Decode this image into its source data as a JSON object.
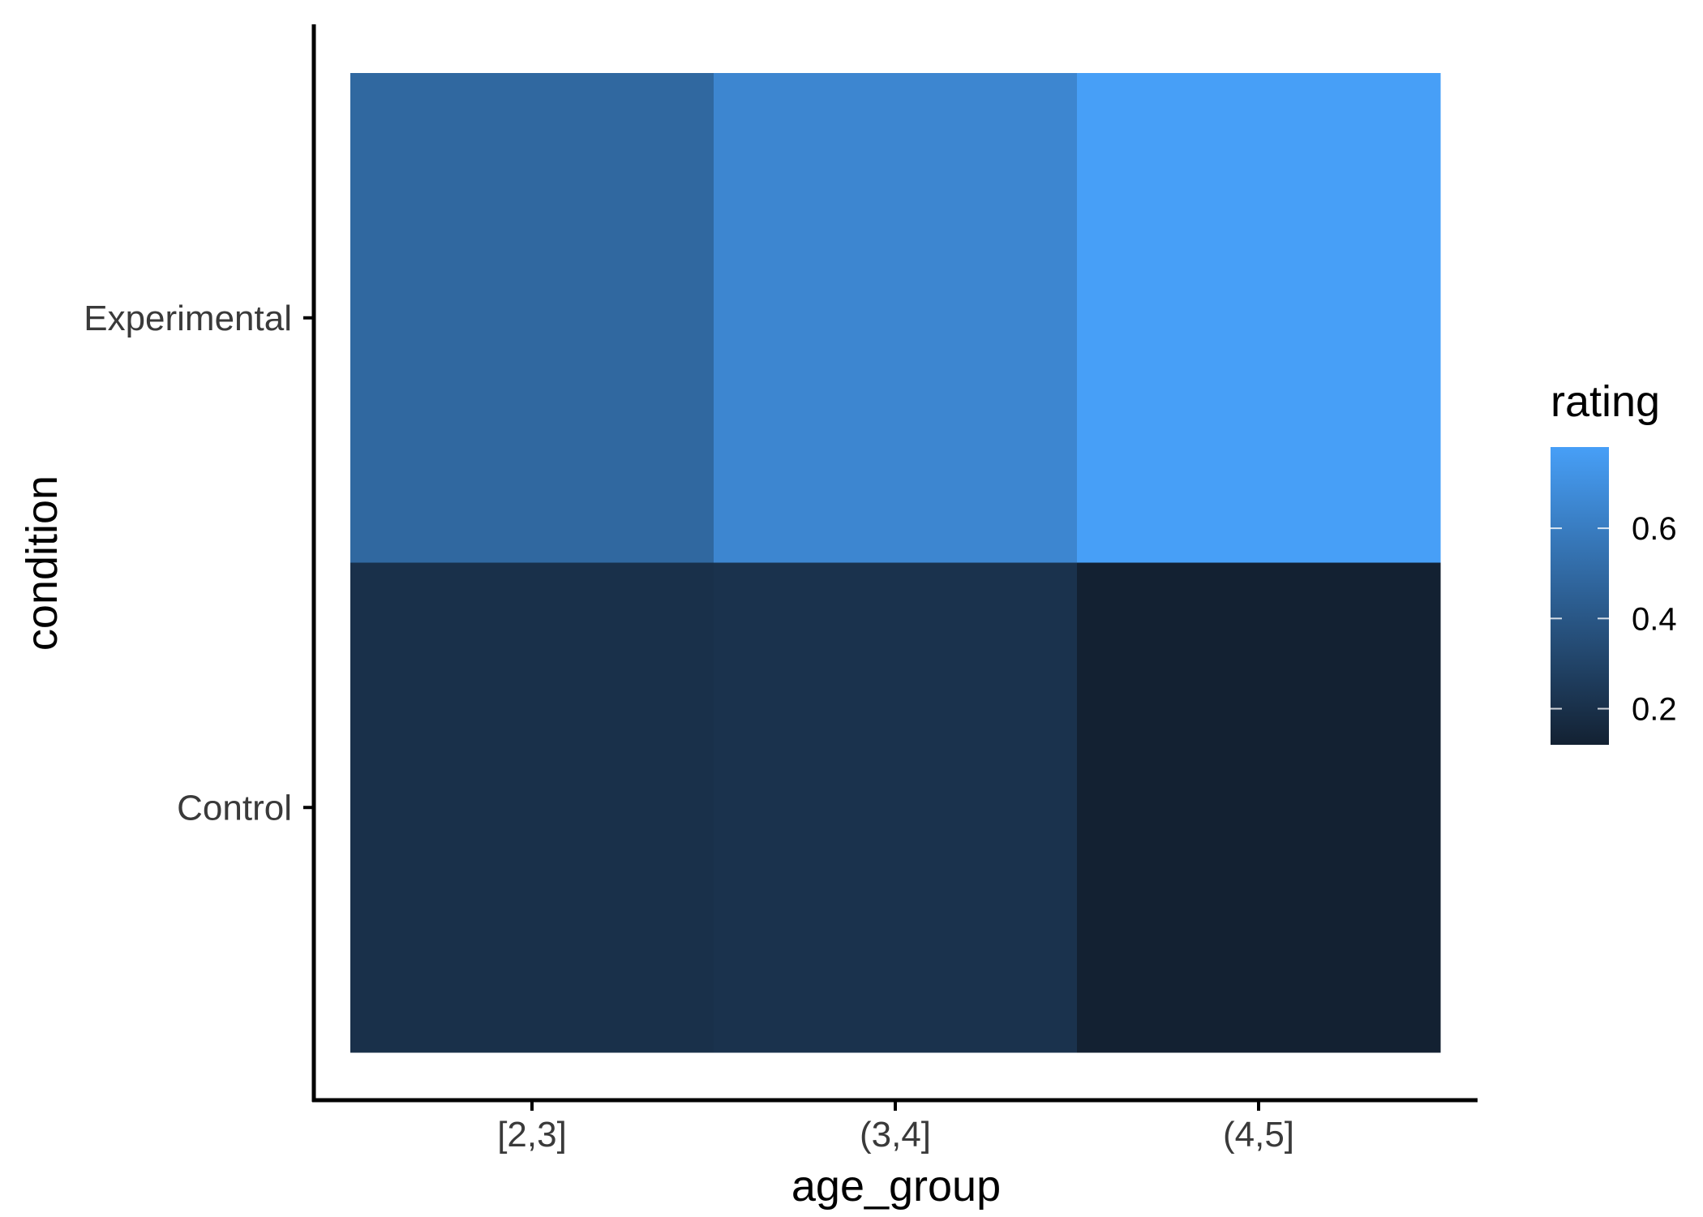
{
  "chart_data": {
    "type": "heatmap",
    "xlabel": "age_group",
    "ylabel": "condition",
    "x_categories": [
      "[2,3]",
      "(3,4]",
      "(4,5]"
    ],
    "y_categories": [
      "Control",
      "Experimental"
    ],
    "values": [
      {
        "x": "[2,3]",
        "y": "Experimental",
        "value": 0.49
      },
      {
        "x": "(3,4]",
        "y": "Experimental",
        "value": 0.65
      },
      {
        "x": "(4,5]",
        "y": "Experimental",
        "value": 0.78
      },
      {
        "x": "[2,3]",
        "y": "Control",
        "value": 0.2
      },
      {
        "x": "(3,4]",
        "y": "Control",
        "value": 0.21
      },
      {
        "x": "(4,5]",
        "y": "Control",
        "value": 0.12
      }
    ],
    "legend": {
      "title": "rating",
      "placement": "right",
      "ticks": [
        0.2,
        0.4,
        0.6
      ],
      "tick_labels": [
        "0.2",
        "0.4",
        "0.6"
      ],
      "range": [
        0.12,
        0.78
      ]
    },
    "colors": {
      "low": "#132132",
      "high": "#479FF7"
    },
    "grid": false
  }
}
